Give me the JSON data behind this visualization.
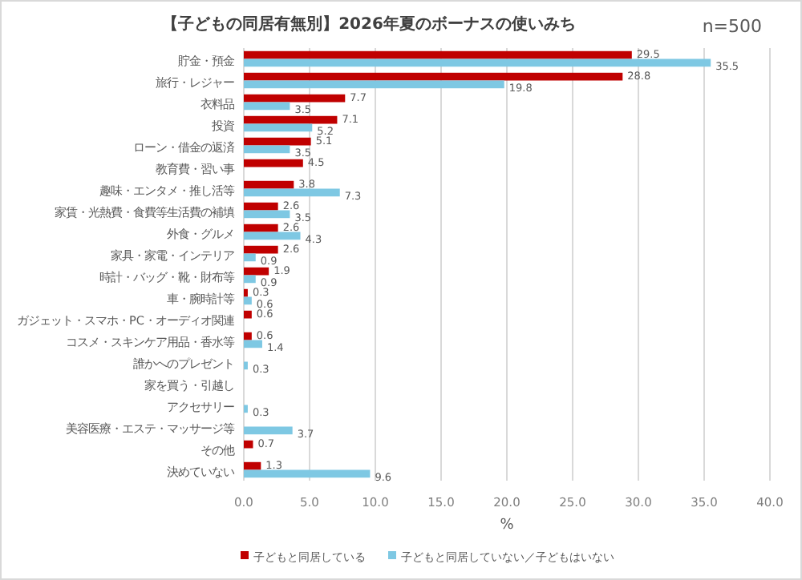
{
  "chart_data": {
    "type": "bar",
    "orientation": "horizontal",
    "title": "【子どもの同居有無別】2026年夏のボーナスの使いみち",
    "xlabel": "%",
    "annotations": [
      "n=500"
    ],
    "categories": [
      "貯金・預金",
      "旅行・レジャー",
      "衣料品",
      "投資",
      "ローン・借金の返済",
      "教育費・習い事",
      "趣味・エンタメ・推し活等",
      "家賃・光熱費・食費等生活費の補填",
      "外食・グルメ",
      "家具・家電・インテリア",
      "時計・バッグ・靴・財布等",
      "車・腕時計等",
      "ガジェット・スマホ・PC・オーディオ関連",
      "コスメ・スキンケア用品・香水等",
      "誰かへのプレゼント",
      "家を買う・引越し",
      "アクセサリー",
      "美容医療・エステ・マッサージ等",
      "その他",
      "決めていない"
    ],
    "series": [
      {
        "name": "子どもと同居している",
        "color": "#c00000",
        "values": [
          29.5,
          28.8,
          7.7,
          7.1,
          5.1,
          4.5,
          3.8,
          2.6,
          2.6,
          2.6,
          1.9,
          0.3,
          0.6,
          0.6,
          null,
          null,
          null,
          null,
          0.7,
          1.3
        ]
      },
      {
        "name": "子どもと同居していない／子どもはいない",
        "color": "#7ec8e3",
        "values": [
          35.5,
          19.8,
          3.5,
          5.2,
          3.5,
          null,
          7.3,
          3.5,
          4.3,
          0.9,
          0.9,
          0.6,
          null,
          1.4,
          0.3,
          null,
          0.3,
          3.7,
          null,
          9.6
        ]
      }
    ],
    "data_labels": true,
    "xlim": [
      0,
      40
    ],
    "xticks": [
      {
        "value": 0,
        "label": "0.0"
      },
      {
        "value": 5,
        "label": "5.0"
      },
      {
        "value": 10,
        "label": "10.0"
      },
      {
        "value": 15,
        "label": "15.0"
      },
      {
        "value": 20,
        "label": "20.0"
      },
      {
        "value": 25,
        "label": "25.0"
      },
      {
        "value": 30,
        "label": "30.0"
      },
      {
        "value": 35,
        "label": "35.0"
      },
      {
        "value": 40,
        "label": "40.0"
      }
    ],
    "grid": "x",
    "legend": "bottom"
  }
}
